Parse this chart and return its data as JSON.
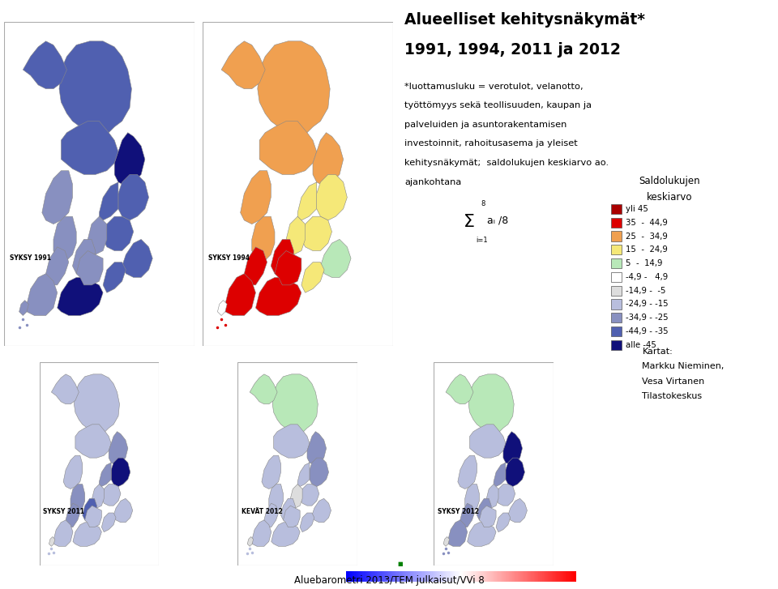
{
  "title_line1": "Alueelliset kehitysnäkymät*",
  "title_line2": "1991, 1994, 2011 ja 2012",
  "desc_lines": [
    "*luottamusluku = verotulot, velanotto,",
    "työttömyys sekä teollisuuden, kaupan ja",
    "palveluiden ja asuntorakentamisen",
    "investoinnit, rahoitusasema ja yleiset",
    "kehitysnäkymät;  saldolukujen keskiarvo ao.",
    "ajankohtana"
  ],
  "legend_title1": "Saldolukujen",
  "legend_title2": "keskiarvo",
  "legend_entries": [
    {
      "label": "yli 45",
      "color": "#aa0000"
    },
    {
      "label": "35  -  44,9",
      "color": "#dd0000"
    },
    {
      "label": "25  -  34,9",
      "color": "#f0a050"
    },
    {
      "label": "15  -  24,9",
      "color": "#f5e878"
    },
    {
      "label": "5  -  14,9",
      "color": "#b8e8b8"
    },
    {
      "label": "-4,9 -   4,9",
      "color": "#ffffff"
    },
    {
      "label": "-14,9 -  -5",
      "color": "#dddddd"
    },
    {
      "label": "-24,9 - -15",
      "color": "#b8bedd"
    },
    {
      "label": "-34,9 - -25",
      "color": "#8890c0"
    },
    {
      "label": "-44,9 - -35",
      "color": "#5060b0"
    },
    {
      "label": "alle -45",
      "color": "#10107a"
    }
  ],
  "map_labels": [
    "SYKSY 1991",
    "SYKSY 1994",
    "SYKSY 2011",
    "KEVÄT 2012",
    "SYKSY 2012"
  ],
  "credits": "Kartat:\nMarkku Nieminen,\nVesa Virtanen\nTilastokeskus",
  "footer": "Aluebarometri 2013/TEM julkaisut/VVi 8",
  "bg_color": "#ffffff"
}
